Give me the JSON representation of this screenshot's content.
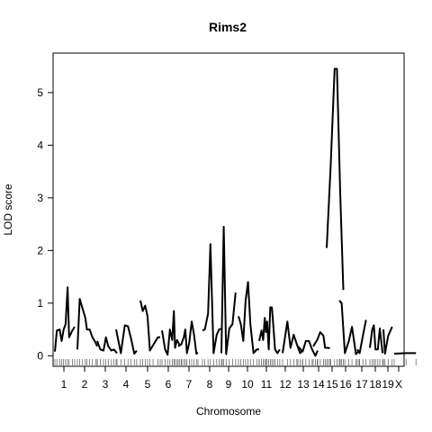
{
  "chart_data": {
    "type": "line",
    "title": "Rims2",
    "xlabel": "Chromosome",
    "ylabel": "LOD score",
    "ylim": [
      -0.2,
      5.75
    ],
    "yticks": [
      0,
      1,
      2,
      3,
      4,
      5
    ],
    "grid": false,
    "legend": "none",
    "line_color": "#000000",
    "chromosomes": [
      {
        "name": "1",
        "points": [
          [
            0.0,
            0.08
          ],
          [
            0.05,
            0.48
          ],
          [
            0.12,
            0.5
          ],
          [
            0.17,
            0.28
          ],
          [
            0.22,
            0.5
          ],
          [
            0.27,
            0.6
          ],
          [
            0.32,
            1.3
          ],
          [
            0.36,
            0.35
          ],
          [
            0.44,
            0.48
          ],
          [
            0.5,
            0.55
          ]
        ]
      },
      {
        "name": "2",
        "points": [
          [
            0.0,
            0.12
          ],
          [
            0.06,
            1.08
          ],
          [
            0.13,
            0.9
          ],
          [
            0.2,
            0.72
          ],
          [
            0.24,
            0.5
          ],
          [
            0.31,
            0.5
          ],
          [
            0.38,
            0.35
          ],
          [
            0.46,
            0.25
          ],
          [
            0.5,
            0.18
          ]
        ]
      },
      {
        "name": "3",
        "points": [
          [
            0.0,
            0.28
          ],
          [
            0.08,
            0.12
          ],
          [
            0.16,
            0.1
          ],
          [
            0.22,
            0.35
          ],
          [
            0.28,
            0.18
          ],
          [
            0.36,
            0.1
          ],
          [
            0.42,
            0.12
          ],
          [
            0.5,
            0.05
          ]
        ]
      },
      {
        "name": "4",
        "points": [
          [
            0.0,
            0.5
          ],
          [
            0.12,
            0.05
          ],
          [
            0.22,
            0.58
          ],
          [
            0.3,
            0.56
          ],
          [
            0.38,
            0.32
          ],
          [
            0.46,
            0.04
          ],
          [
            0.52,
            0.1
          ]
        ]
      },
      {
        "name": "5",
        "points": [
          [
            0.0,
            1.05
          ],
          [
            0.06,
            0.85
          ],
          [
            0.12,
            0.95
          ],
          [
            0.18,
            0.75
          ],
          [
            0.24,
            0.1
          ],
          [
            0.32,
            0.2
          ],
          [
            0.44,
            0.35
          ],
          [
            0.5,
            0.35
          ]
        ]
      },
      {
        "name": "6",
        "points": [
          [
            0.0,
            0.48
          ],
          [
            0.08,
            0.12
          ],
          [
            0.14,
            0.02
          ],
          [
            0.2,
            0.5
          ],
          [
            0.26,
            0.3
          ],
          [
            0.3,
            0.85
          ],
          [
            0.33,
            0.15
          ],
          [
            0.38,
            0.3
          ],
          [
            0.45,
            0.2
          ],
          [
            0.5,
            0.22
          ]
        ]
      },
      {
        "name": "7",
        "points": [
          [
            0.0,
            0.18
          ],
          [
            0.08,
            0.22
          ],
          [
            0.14,
            0.35
          ],
          [
            0.18,
            0.5
          ],
          [
            0.22,
            0.05
          ],
          [
            0.28,
            0.25
          ],
          [
            0.34,
            0.65
          ],
          [
            0.4,
            0.4
          ],
          [
            0.46,
            0.04
          ],
          [
            0.5,
            0.06
          ]
        ]
      },
      {
        "name": "8",
        "points": [
          [
            0.0,
            0.48
          ],
          [
            0.06,
            0.5
          ],
          [
            0.14,
            0.8
          ],
          [
            0.2,
            2.12
          ],
          [
            0.28,
            0.05
          ],
          [
            0.36,
            0.4
          ],
          [
            0.42,
            0.5
          ],
          [
            0.5,
            0.52
          ]
        ]
      },
      {
        "name": "9",
        "points": [
          [
            0.0,
            0.05
          ],
          [
            0.06,
            2.45
          ],
          [
            0.12,
            0.03
          ],
          [
            0.2,
            0.52
          ],
          [
            0.28,
            0.6
          ],
          [
            0.36,
            1.2
          ]
        ]
      },
      {
        "name": "10",
        "points": [
          [
            0.0,
            0.75
          ],
          [
            0.06,
            0.6
          ],
          [
            0.12,
            0.28
          ],
          [
            0.18,
            1.05
          ],
          [
            0.24,
            1.4
          ],
          [
            0.3,
            0.6
          ],
          [
            0.38,
            0.05
          ],
          [
            0.46,
            0.12
          ],
          [
            0.52,
            0.12
          ]
        ]
      },
      {
        "name": "11",
        "points": [
          [
            0.0,
            0.28
          ],
          [
            0.06,
            0.48
          ],
          [
            0.1,
            0.3
          ],
          [
            0.14,
            0.72
          ],
          [
            0.17,
            0.45
          ],
          [
            0.2,
            0.65
          ],
          [
            0.24,
            0.12
          ],
          [
            0.28,
            0.92
          ],
          [
            0.32,
            0.92
          ],
          [
            0.36,
            0.55
          ],
          [
            0.4,
            0.12
          ],
          [
            0.46,
            0.05
          ],
          [
            0.52,
            0.12
          ]
        ]
      },
      {
        "name": "12",
        "points": [
          [
            0.0,
            0.05
          ],
          [
            0.12,
            0.65
          ],
          [
            0.2,
            0.15
          ],
          [
            0.28,
            0.4
          ],
          [
            0.36,
            0.22
          ],
          [
            0.44,
            0.05
          ],
          [
            0.5,
            0.1
          ]
        ]
      },
      {
        "name": "13",
        "points": [
          [
            0.0,
            0.18
          ],
          [
            0.12,
            0.08
          ],
          [
            0.2,
            0.28
          ],
          [
            0.28,
            0.28
          ],
          [
            0.36,
            0.12
          ],
          [
            0.44,
            0.0
          ],
          [
            0.5,
            0.1
          ]
        ]
      },
      {
        "name": "14",
        "points": [
          [
            0.0,
            0.18
          ],
          [
            0.1,
            0.3
          ],
          [
            0.18,
            0.45
          ],
          [
            0.26,
            0.38
          ],
          [
            0.3,
            0.15
          ],
          [
            0.38,
            0.15
          ],
          [
            0.42,
            0.14
          ]
        ]
      },
      {
        "name": "15",
        "points": [
          [
            0.0,
            2.05
          ],
          [
            0.1,
            3.6
          ],
          [
            0.2,
            5.45
          ],
          [
            0.26,
            5.45
          ],
          [
            0.34,
            3.1
          ],
          [
            0.42,
            1.25
          ]
        ]
      },
      {
        "name": "16",
        "points": [
          [
            0.0,
            1.05
          ],
          [
            0.06,
            1.0
          ],
          [
            0.14,
            0.05
          ],
          [
            0.24,
            0.28
          ],
          [
            0.32,
            0.55
          ],
          [
            0.42,
            0.03
          ],
          [
            0.5,
            0.1
          ]
        ]
      },
      {
        "name": "17",
        "points": [
          [
            0.0,
            0.12
          ],
          [
            0.06,
            0.05
          ],
          [
            0.14,
            0.38
          ],
          [
            0.22,
            0.68
          ]
        ]
      },
      {
        "name": "18",
        "points": [
          [
            0.0,
            0.15
          ],
          [
            0.06,
            0.5
          ],
          [
            0.1,
            0.58
          ],
          [
            0.14,
            0.12
          ],
          [
            0.2,
            0.12
          ],
          [
            0.25,
            0.52
          ],
          [
            0.32,
            0.05
          ]
        ]
      },
      {
        "name": "19",
        "points": [
          [
            0.0,
            0.5
          ],
          [
            0.04,
            0.04
          ],
          [
            0.12,
            0.38
          ],
          [
            0.22,
            0.55
          ]
        ]
      },
      {
        "name": "X",
        "points": [
          [
            0.0,
            0.04
          ],
          [
            0.3,
            0.05
          ],
          [
            0.55,
            0.05
          ]
        ]
      }
    ]
  }
}
